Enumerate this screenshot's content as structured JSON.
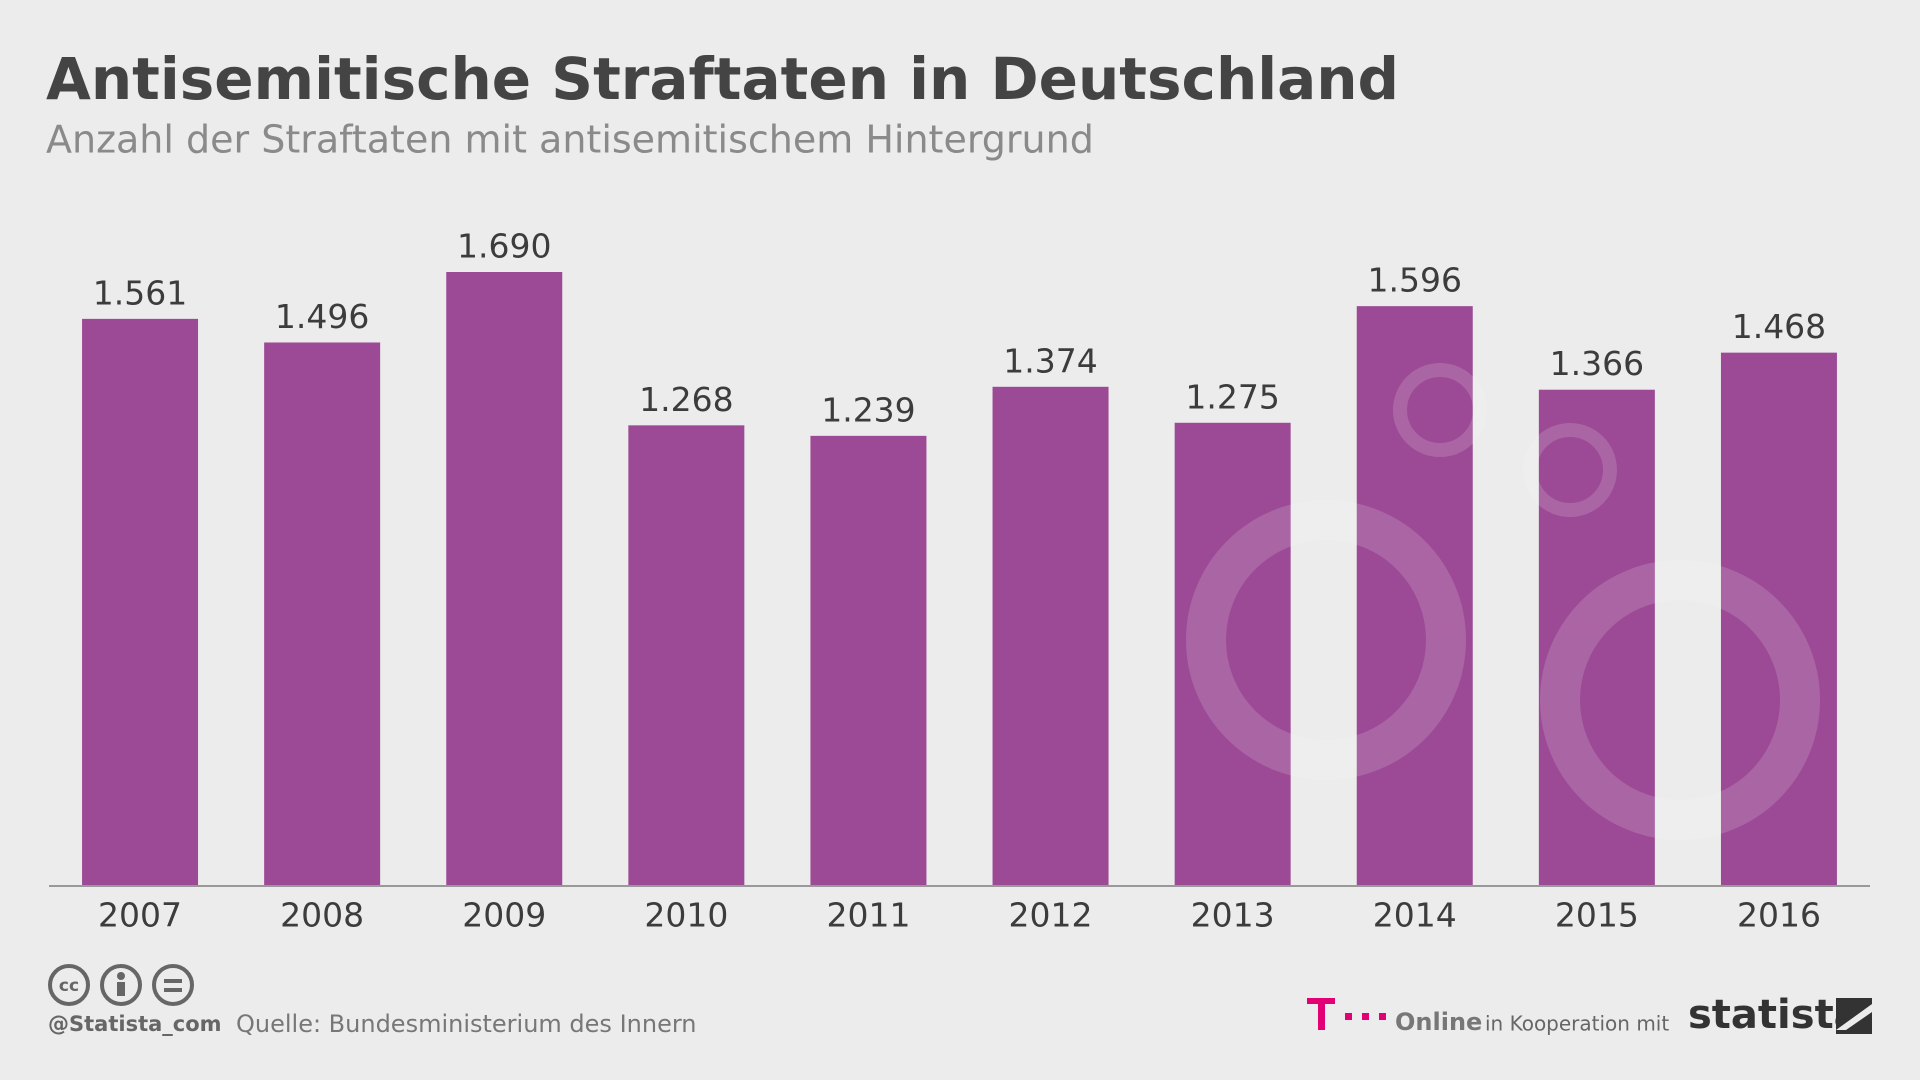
{
  "chart_data": {
    "type": "bar",
    "title": "Antisemitische Straftaten in Deutschland",
    "subtitle": "Anzahl der Straftaten mit antisemitischem Hintergrund",
    "categories": [
      "2007",
      "2008",
      "2009",
      "2010",
      "2011",
      "2012",
      "2013",
      "2014",
      "2015",
      "2016"
    ],
    "values": [
      1561,
      1496,
      1690,
      1268,
      1239,
      1374,
      1275,
      1596,
      1366,
      1468
    ],
    "value_labels": [
      "1.561",
      "1.496",
      "1.690",
      "1.268",
      "1.239",
      "1.374",
      "1.275",
      "1.596",
      "1.366",
      "1.468"
    ],
    "color": "#9c4a96"
  },
  "footer": {
    "license": "cc",
    "handle": "@Statista_com",
    "source": "Quelle: Bundesministerium des Innern",
    "partner": "Online",
    "cooperation": "in Kooperation mit",
    "brand": "statista"
  }
}
